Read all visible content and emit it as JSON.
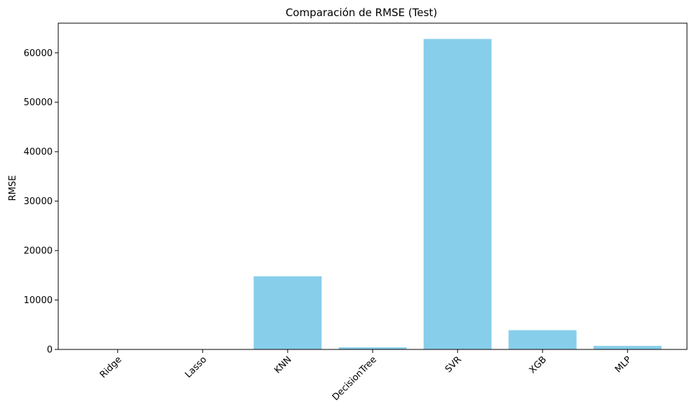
{
  "chart_data": {
    "type": "bar",
    "title": "Comparación de RMSE (Test)",
    "xlabel": "",
    "ylabel": "RMSE",
    "categories": [
      "Ridge",
      "Lasso",
      "KNN",
      "DecisionTree",
      "SVR",
      "XGB",
      "MLP"
    ],
    "values": [
      45,
      40,
      14800,
      420,
      62800,
      3900,
      720
    ],
    "ylim": [
      0,
      66000
    ],
    "yticks": [
      0,
      10000,
      20000,
      30000,
      40000,
      50000,
      60000
    ],
    "grid": false,
    "bar_color": "#87ceeb"
  }
}
